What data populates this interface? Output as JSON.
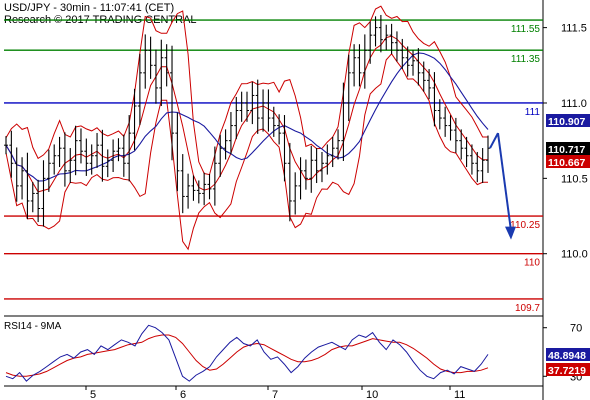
{
  "header": {
    "line1": "USD/JPY - 30min - 11:07:41 (CET)",
    "line2": "Research © 2017 TRADING CENTRAL"
  },
  "colors": {
    "background": "#ffffff",
    "price": "#000000",
    "bollinger": "#cc0000",
    "moving_average": "#1a1aa0",
    "resistance": "#008000",
    "pivot": "#0000c0",
    "support": "#cc0000",
    "forecast_arrow": "#1a3ab0",
    "rsi": "#1a1aa0",
    "rsi_ma": "#cc0000",
    "axis_text": "#000000"
  },
  "chart_data": [
    {
      "type": "line",
      "title": "USD/JPY - 30min",
      "ylim": [
        109.6,
        111.67
      ],
      "y_ticks": [
        "111.5",
        "111.0",
        "110.5",
        "110.0"
      ],
      "x_labels": [
        "5",
        "6",
        "7",
        "10",
        "11"
      ],
      "series": [
        {
          "name": "",
          "style": "candlestick-bars",
          "values": [
            110.72,
            110.6,
            110.45,
            110.55,
            110.35,
            110.4,
            110.3,
            110.5,
            110.6,
            110.65,
            110.7,
            110.55,
            110.62,
            110.75,
            110.68,
            110.6,
            110.65,
            110.72,
            110.58,
            110.62,
            110.68,
            110.7,
            110.6,
            110.8,
            110.98,
            111.2,
            111.35,
            111.25,
            111.1,
            111.3,
            111.2,
            110.8,
            110.55,
            110.38,
            110.45,
            110.42,
            110.4,
            110.46,
            110.43,
            110.6,
            110.7,
            110.75,
            110.85,
            110.95,
            111.0,
            110.95,
            111.05,
            110.9,
            111.0,
            110.9,
            110.85,
            110.8,
            110.6,
            110.35,
            110.45,
            110.55,
            110.5,
            110.62,
            110.55,
            110.6,
            110.65,
            110.7,
            110.75,
            111.0,
            111.2,
            111.3,
            111.2,
            111.35,
            111.45,
            111.5,
            111.42,
            111.45,
            111.4,
            111.35,
            111.3,
            111.25,
            111.28,
            111.2,
            111.15,
            111.1,
            110.95,
            110.9,
            110.85,
            110.82,
            110.75,
            110.7,
            110.65,
            110.6,
            110.55,
            110.62,
            110.7
          ]
        }
      ],
      "levels": [
        {
          "label": "111.55",
          "value": 111.55,
          "kind": "resistance"
        },
        {
          "label": "111.35",
          "value": 111.35,
          "kind": "resistance"
        },
        {
          "label": "111",
          "value": 111.0,
          "kind": "pivot"
        },
        {
          "label": "110.25",
          "value": 110.25,
          "kind": "support"
        },
        {
          "label": "110",
          "value": 110.0,
          "kind": "support"
        },
        {
          "label": "109.7",
          "value": 109.7,
          "kind": "support"
        }
      ],
      "price_tags": [
        {
          "label": "110.907",
          "value": 110.907,
          "kind": "moving_average"
        },
        {
          "label": "110.717",
          "value": 110.717,
          "kind": "last_price"
        },
        {
          "label": "110.667",
          "value": 110.667,
          "kind": "bollinger"
        }
      ],
      "forecast": {
        "from": 110.8,
        "to": 110.1
      }
    },
    {
      "type": "line",
      "title": "RSI14 - 9MA",
      "ylim": [
        22,
        78
      ],
      "y_ticks": [
        "70",
        "30"
      ],
      "series": [
        {
          "name": "RSI14",
          "values": [
            30,
            28,
            33,
            26,
            31,
            34,
            38,
            42,
            46,
            48,
            45,
            50,
            52,
            48,
            55,
            52,
            56,
            60,
            58,
            55,
            65,
            72,
            70,
            66,
            60,
            45,
            30,
            26,
            31,
            34,
            38,
            46,
            52,
            58,
            62,
            57,
            55,
            60,
            50,
            44,
            46,
            40,
            33,
            38,
            45,
            50,
            54,
            56,
            58,
            55,
            52,
            60,
            64,
            62,
            66,
            58,
            52,
            60,
            56,
            50,
            42,
            35,
            30,
            28,
            33,
            35,
            32,
            38,
            36,
            34,
            40,
            48
          ]
        },
        {
          "name": "9MA",
          "values": [
            33,
            31,
            30,
            30,
            31,
            32,
            34,
            37,
            40,
            43,
            45,
            46,
            48,
            49,
            50,
            51,
            52,
            54,
            56,
            57,
            58,
            61,
            63,
            64,
            64,
            62,
            57,
            50,
            43,
            38,
            35,
            36,
            40,
            45,
            50,
            54,
            56,
            57,
            56,
            53,
            50,
            47,
            44,
            42,
            42,
            43,
            45,
            48,
            52,
            54,
            55,
            55,
            57,
            59,
            61,
            60,
            59,
            58,
            58,
            56,
            53,
            49,
            45,
            40,
            36,
            34,
            33,
            33,
            34,
            34,
            35,
            37
          ]
        }
      ],
      "tags": [
        {
          "label": "48.8948",
          "value": 48.8948,
          "series": "RSI14"
        },
        {
          "label": "37.7219",
          "value": 37.7219,
          "series": "9MA"
        }
      ]
    }
  ]
}
